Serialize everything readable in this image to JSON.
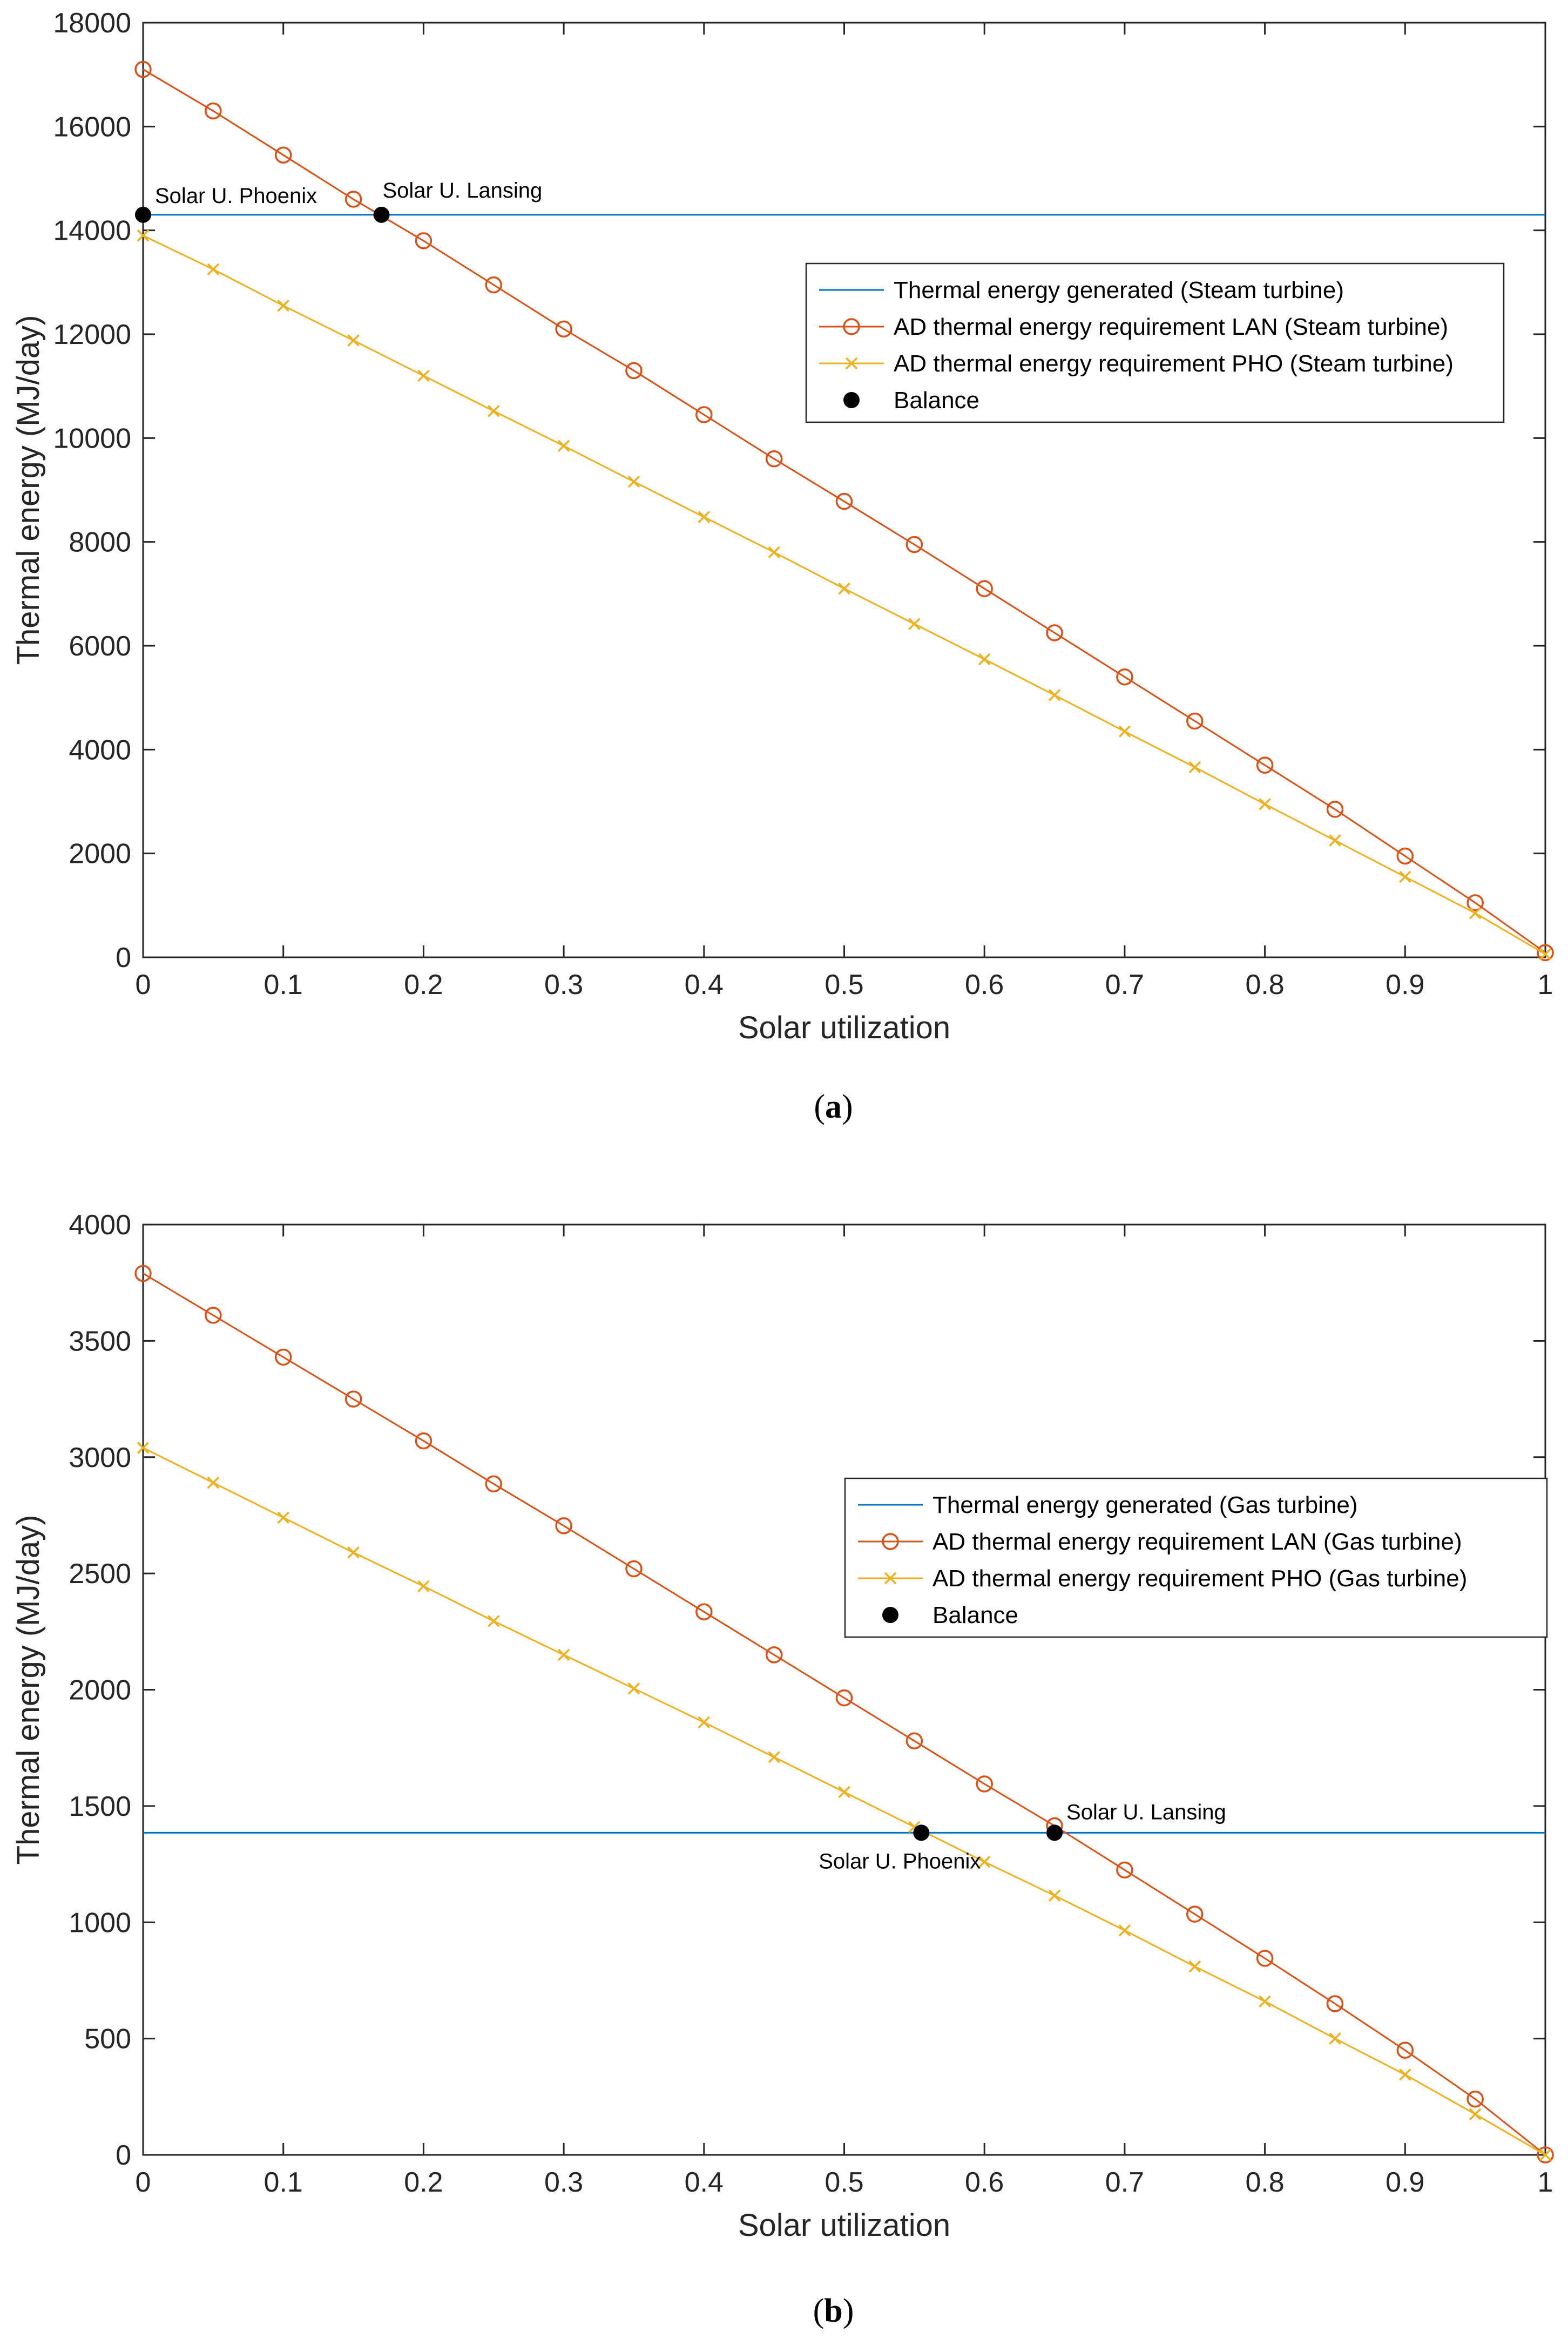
{
  "chart_data": [
    {
      "id": "a",
      "type": "line",
      "caption": "a",
      "xlabel": "Solar utilization",
      "ylabel": "Thermal energy (MJ/day)",
      "xlim": [
        0,
        1
      ],
      "ylim": [
        0,
        18000
      ],
      "xticks": [
        0,
        0.1,
        0.2,
        0.3,
        0.4,
        0.5,
        0.6,
        0.7,
        0.8,
        0.9,
        1
      ],
      "yticks": [
        0,
        2000,
        4000,
        6000,
        8000,
        10000,
        12000,
        14000,
        16000,
        18000
      ],
      "legend": "top-right",
      "series": [
        {
          "name": "Thermal energy generated (Steam turbine)",
          "marker": "none",
          "color": "#0072BD",
          "x": [
            0,
            1
          ],
          "values": [
            14300,
            14300
          ]
        },
        {
          "name": "AD thermal energy requirement LAN (Steam turbine)",
          "marker": "circle",
          "color": "#D95319",
          "x": [
            0,
            0.05,
            0.1,
            0.15,
            0.2,
            0.25,
            0.3,
            0.35,
            0.4,
            0.45,
            0.5,
            0.55,
            0.6,
            0.65,
            0.7,
            0.75,
            0.8,
            0.85,
            0.9,
            0.95,
            1
          ],
          "values": [
            17100,
            16300,
            15450,
            14600,
            13800,
            12950,
            12100,
            11300,
            10450,
            9600,
            8780,
            7950,
            7100,
            6250,
            5400,
            4550,
            3700,
            2850,
            1950,
            1050,
            90
          ]
        },
        {
          "name": "AD thermal energy requirement PHO (Steam turbine)",
          "marker": "x",
          "color": "#EDB120",
          "x": [
            0,
            0.05,
            0.1,
            0.15,
            0.2,
            0.25,
            0.3,
            0.35,
            0.4,
            0.45,
            0.5,
            0.55,
            0.6,
            0.65,
            0.7,
            0.75,
            0.8,
            0.85,
            0.9,
            0.95,
            1
          ],
          "values": [
            13900,
            13250,
            12550,
            11880,
            11200,
            10520,
            9850,
            9160,
            8480,
            7800,
            7100,
            6420,
            5740,
            5050,
            4350,
            3660,
            2950,
            2250,
            1550,
            850,
            60
          ]
        },
        {
          "name": "Balance",
          "marker": "dot",
          "color": "#000000",
          "x": [
            0,
            0.17
          ],
          "values": [
            14300,
            14300
          ]
        }
      ],
      "annotations": [
        {
          "text": "Solar U. Phoenix",
          "x": 0,
          "y": 14300
        },
        {
          "text": "Solar U. Lansing",
          "x": 0.17,
          "y": 14300
        }
      ]
    },
    {
      "id": "b",
      "type": "line",
      "caption": "b",
      "xlabel": "Solar utilization",
      "ylabel": "Thermal energy (MJ/day)",
      "xlim": [
        0,
        1
      ],
      "ylim": [
        0,
        4000
      ],
      "xticks": [
        0,
        0.1,
        0.2,
        0.3,
        0.4,
        0.5,
        0.6,
        0.7,
        0.8,
        0.9,
        1
      ],
      "yticks": [
        0,
        500,
        1000,
        1500,
        2000,
        2500,
        3000,
        3500,
        4000
      ],
      "legend": "right",
      "series": [
        {
          "name": "Thermal energy generated (Gas turbine)",
          "marker": "none",
          "color": "#0072BD",
          "x": [
            0,
            1
          ],
          "values": [
            1385,
            1385
          ]
        },
        {
          "name": "AD thermal energy requirement LAN (Gas turbine)",
          "marker": "circle",
          "color": "#D95319",
          "x": [
            0,
            0.05,
            0.1,
            0.15,
            0.2,
            0.25,
            0.3,
            0.35,
            0.4,
            0.45,
            0.5,
            0.55,
            0.6,
            0.65,
            0.7,
            0.75,
            0.8,
            0.85,
            0.9,
            0.95,
            1
          ],
          "values": [
            3790,
            3610,
            3430,
            3250,
            3070,
            2885,
            2705,
            2520,
            2335,
            2150,
            1965,
            1780,
            1595,
            1415,
            1225,
            1035,
            845,
            650,
            450,
            240,
            0
          ]
        },
        {
          "name": "AD thermal energy requirement PHO (Gas turbine)",
          "marker": "x",
          "color": "#EDB120",
          "x": [
            0,
            0.05,
            0.1,
            0.15,
            0.2,
            0.25,
            0.3,
            0.35,
            0.4,
            0.45,
            0.5,
            0.55,
            0.6,
            0.65,
            0.7,
            0.75,
            0.8,
            0.85,
            0.9,
            0.95,
            1
          ],
          "values": [
            3040,
            2890,
            2740,
            2590,
            2445,
            2295,
            2150,
            2005,
            1860,
            1710,
            1560,
            1410,
            1260,
            1115,
            965,
            810,
            660,
            500,
            345,
            175,
            0
          ]
        },
        {
          "name": "Balance",
          "marker": "dot",
          "color": "#000000",
          "x": [
            0.555,
            0.65
          ],
          "values": [
            1385,
            1385
          ]
        }
      ],
      "annotations": [
        {
          "text": "Solar U. Phoenix",
          "x": 0.555,
          "y": 1385
        },
        {
          "text": "Solar U. Lansing",
          "x": 0.65,
          "y": 1385
        }
      ]
    }
  ]
}
